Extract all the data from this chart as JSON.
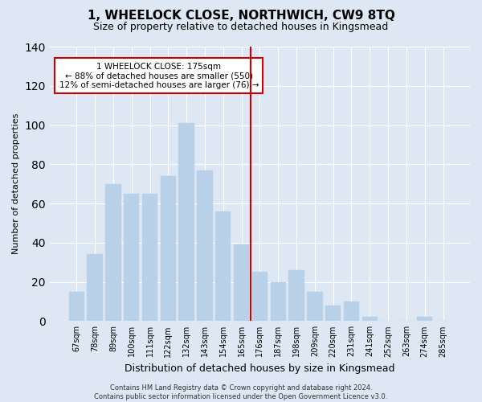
{
  "title": "1, WHEELOCK CLOSE, NORTHWICH, CW9 8TQ",
  "subtitle": "Size of property relative to detached houses in Kingsmead",
  "xlabel": "Distribution of detached houses by size in Kingsmead",
  "ylabel": "Number of detached properties",
  "categories": [
    "67sqm",
    "78sqm",
    "89sqm",
    "100sqm",
    "111sqm",
    "122sqm",
    "132sqm",
    "143sqm",
    "154sqm",
    "165sqm",
    "176sqm",
    "187sqm",
    "198sqm",
    "209sqm",
    "220sqm",
    "231sqm",
    "241sqm",
    "252sqm",
    "263sqm",
    "274sqm",
    "285sqm"
  ],
  "values": [
    15,
    34,
    70,
    65,
    65,
    74,
    101,
    77,
    56,
    39,
    25,
    20,
    26,
    15,
    8,
    10,
    2,
    0,
    0,
    2,
    0
  ],
  "bar_color": "#b8d0e8",
  "bar_edgecolor": "#b8d0e8",
  "vline_color": "#cc0000",
  "annotation_text": "1 WHEELOCK CLOSE: 175sqm\n← 88% of detached houses are smaller (550)\n12% of semi-detached houses are larger (76) →",
  "annotation_box_color": "#ffffff",
  "annotation_box_edgecolor": "#cc0000",
  "ylim": [
    0,
    140
  ],
  "yticks": [
    0,
    20,
    40,
    60,
    80,
    100,
    120,
    140
  ],
  "footer": "Contains HM Land Registry data © Crown copyright and database right 2024.\nContains public sector information licensed under the Open Government Licence v3.0.",
  "background_color": "#dde8f4",
  "plot_background": "#dde8f4",
  "grid_color": "#ffffff",
  "title_fontsize": 11,
  "subtitle_fontsize": 9,
  "xlabel_fontsize": 9,
  "ylabel_fontsize": 8,
  "tick_fontsize": 7,
  "annotation_fontsize": 7.5,
  "footer_fontsize": 6
}
